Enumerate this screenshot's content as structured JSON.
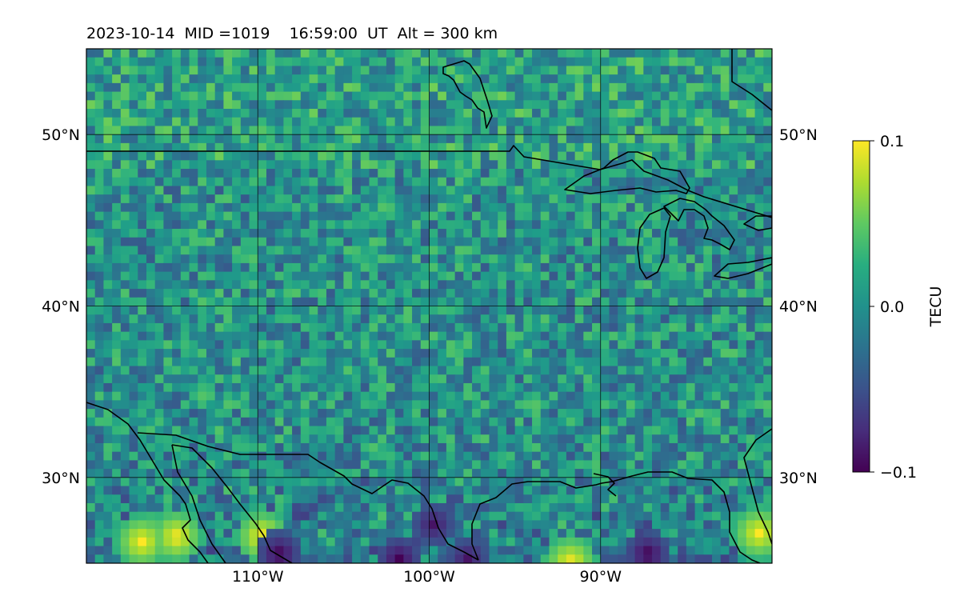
{
  "chart_data": {
    "type": "heatmap",
    "title": "2023-10-14  MID =1019    16:59:00  UT  Alt = 300 km",
    "map_extent": {
      "lon": [
        -120,
        -80
      ],
      "lat": [
        25,
        55
      ]
    },
    "x_ticks": [
      {
        "lon": -110,
        "label": "110°W"
      },
      {
        "lon": -100,
        "label": "100°W"
      },
      {
        "lon": -90,
        "label": "90°W"
      }
    ],
    "y_ticks": [
      {
        "lat": 30,
        "label": "30°N"
      },
      {
        "lat": 40,
        "label": "40°N"
      },
      {
        "lat": 50,
        "label": "50°N"
      }
    ],
    "grid": true,
    "colorbar": {
      "label": "TECU",
      "colormap": "viridis",
      "range": [
        -0.1,
        0.1
      ],
      "ticks": [
        {
          "value": 0.1,
          "label": "0.1"
        },
        {
          "value": 0.0,
          "label": "0.0"
        },
        {
          "value": -0.1,
          "label": "−0.1"
        }
      ]
    },
    "field_description_values": {
      "background_mean": 0.0,
      "grid_step_deg": 0.5,
      "highlights": [
        {
          "lon": -117.0,
          "lat": 26.5,
          "value": 0.1
        },
        {
          "lon": -115.0,
          "lat": 26.8,
          "value": 0.1
        },
        {
          "lon": -110.0,
          "lat": 26.8,
          "value": 0.1
        },
        {
          "lon": -92.0,
          "lat": 25.3,
          "value": 0.1
        },
        {
          "lon": -81.0,
          "lat": 27.0,
          "value": 0.1
        }
      ],
      "lowlights": [
        {
          "lon": -102.0,
          "lat": 25.5,
          "value": -0.1
        },
        {
          "lon": -100.0,
          "lat": 27.5,
          "value": -0.09
        },
        {
          "lon": -98.0,
          "lat": 25.5,
          "value": -0.09
        },
        {
          "lon": -109.0,
          "lat": 25.8,
          "value": -0.1
        },
        {
          "lon": -87.5,
          "lat": 25.8,
          "value": -0.1
        }
      ]
    }
  }
}
